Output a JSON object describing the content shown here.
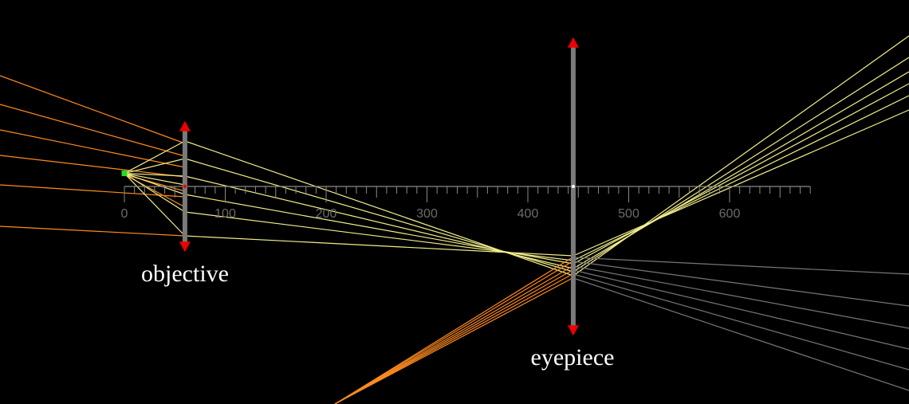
{
  "diagram": {
    "ruler": {
      "min": 0,
      "max": 680,
      "minor_step": 10,
      "major_step": 100,
      "tick_labels": [
        "0",
        "100",
        "200",
        "300",
        "400",
        "500",
        "600"
      ]
    },
    "source_point": {
      "x": 0,
      "y": 13,
      "color": "#22dd22"
    },
    "objective": {
      "label": "objective",
      "position": 60,
      "half_height": 65
    },
    "eyepiece": {
      "label": "eyepiece",
      "position": 445,
      "half_height": 148
    },
    "colors": {
      "background": "#000000",
      "ray_yellow": "#f2ee8a",
      "ray_orange": "#ff8a1e",
      "ray_gray": "#777777",
      "lens_body": "#7a7a7a",
      "lens_arrow": "#ee0000",
      "ruler": "#8a8a8a"
    }
  }
}
